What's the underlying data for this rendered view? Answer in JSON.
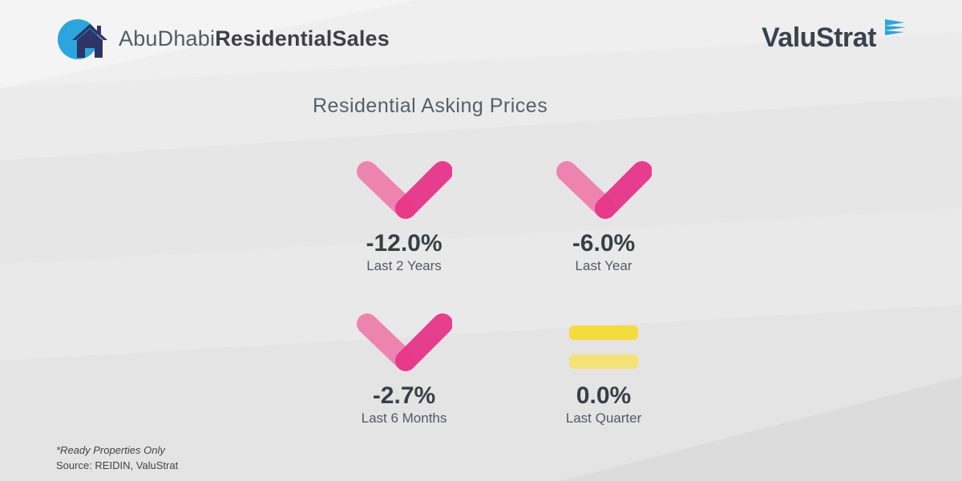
{
  "header": {
    "brand_light": "AbuDhabi",
    "brand_bold": "ResidentialSales",
    "company": "ValuStrat",
    "logo_icon": "house-icon"
  },
  "section_title": "Residential Asking Prices",
  "stats": [
    {
      "value": "-12.0%",
      "label": "Last 2 Years",
      "trend": "down",
      "icon": "down-chevron-icon"
    },
    {
      "value": "-6.0%",
      "label": "Last Year",
      "trend": "down",
      "icon": "down-chevron-icon"
    },
    {
      "value": "-2.7%",
      "label": "Last 6 Months",
      "trend": "down",
      "icon": "down-chevron-icon"
    },
    {
      "value": "0.0%",
      "label": "Last Quarter",
      "trend": "flat",
      "icon": "equals-icon"
    }
  ],
  "footnote": {
    "note": "*Ready Properties Only",
    "source": "Source: REIDIN, ValuStrat"
  },
  "colors": {
    "down_light": "#ee7fae",
    "down_dark": "#e8358a",
    "flat": "#f5dc3c",
    "logo_blue": "#2aa5dd",
    "logo_navy": "#2c3566"
  }
}
